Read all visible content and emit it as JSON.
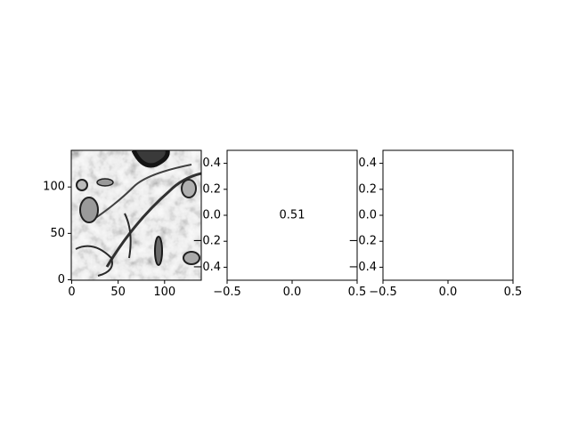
{
  "colors": {
    "background": "#ffffff",
    "axes_edge": "#000000",
    "heat_cell": "#fb694a"
  },
  "chart_data": [
    {
      "type": "other",
      "kind": "grayscale-image",
      "content": "electron microscopy image of tissue (cell membranes and organelles)",
      "cmap": "gray",
      "xlim": [
        -0.5,
        139.5
      ],
      "ylim": [
        139.5,
        -0.5
      ],
      "xticks": [
        0,
        50,
        100
      ],
      "yticks": [
        0,
        50,
        100
      ],
      "xtick_labels": [
        "0",
        "50",
        "100"
      ],
      "ytick_labels": [
        "0",
        "50",
        "100"
      ]
    },
    {
      "type": "heatmap",
      "values": [
        [
          0.51
        ]
      ],
      "annotations": [
        "0.51"
      ],
      "color": "#fb694a",
      "xlim": [
        -0.5,
        0.5
      ],
      "ylim": [
        0.5,
        -0.5
      ],
      "xticks": [
        -0.5,
        0.0,
        0.5
      ],
      "yticks": [
        -0.4,
        -0.2,
        0.0,
        0.2,
        0.4
      ],
      "xtick_labels": [
        "−0.5",
        "0.0",
        "0.5"
      ],
      "ytick_labels": [
        "−0.4",
        "−0.2",
        "0.0",
        "0.2",
        "0.4"
      ]
    },
    {
      "type": "heatmap",
      "values": [],
      "annotations": [],
      "xlim": [
        -0.5,
        0.5
      ],
      "ylim": [
        0.5,
        -0.5
      ],
      "xticks": [
        -0.5,
        0.0,
        0.5
      ],
      "yticks": [
        -0.4,
        -0.2,
        0.0,
        0.2,
        0.4
      ],
      "xtick_labels": [
        "−0.5",
        "0.0",
        "0.5"
      ],
      "ytick_labels": [
        "−0.4",
        "−0.2",
        "0.0",
        "0.2",
        "0.4"
      ]
    }
  ]
}
